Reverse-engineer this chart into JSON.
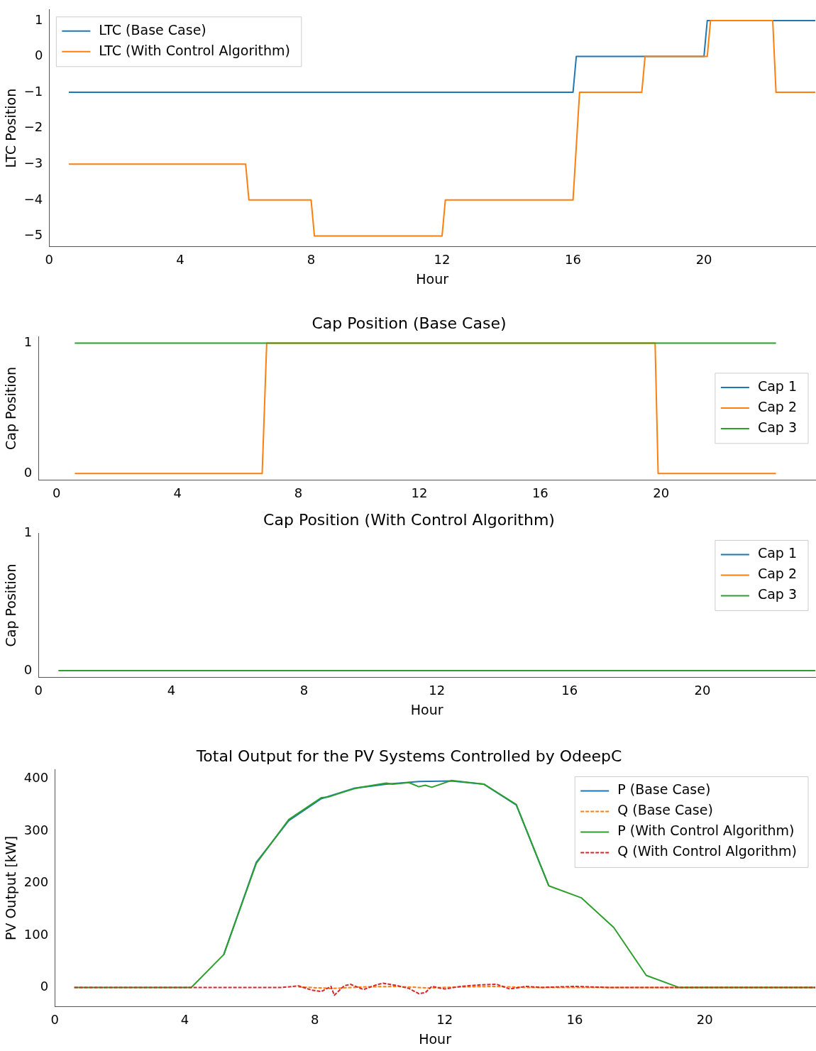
{
  "chart_data": [
    {
      "type": "line",
      "ylabel": "LTC Position",
      "xlabel": "Hour",
      "xlim": [
        0,
        23.4
      ],
      "ylim": [
        -5.3,
        1.3
      ],
      "xticks": [
        0,
        4,
        8,
        12,
        16,
        20
      ],
      "yticks": [
        -5,
        -4,
        -3,
        -2,
        -1,
        0,
        1
      ],
      "grid": false,
      "legend": "top left",
      "marker": "none",
      "series": [
        {
          "name": "LTC (Base Case)",
          "color": "#1f77b4",
          "x": [
            0.6,
            16.0,
            16.1,
            20.0,
            20.1,
            23.4
          ],
          "values": [
            -1,
            -1,
            0,
            0,
            1,
            1
          ]
        },
        {
          "name": "LTC (With Control Algorithm)",
          "color": "#ff7f0e",
          "x": [
            0.6,
            6.0,
            6.1,
            8.0,
            8.1,
            12.0,
            12.1,
            16.0,
            16.2,
            18.1,
            18.2,
            20.1,
            20.2,
            22.1,
            22.2,
            23.4
          ],
          "values": [
            -3,
            -3,
            -4,
            -4,
            -5,
            -5,
            -4,
            -4,
            -1,
            -1,
            0,
            0,
            1,
            1,
            -1,
            -1
          ]
        }
      ]
    },
    {
      "type": "line",
      "title": "Cap Position (Base Case)",
      "ylabel": "Cap Position",
      "xlim": [
        -0.6,
        25.1
      ],
      "ylim": [
        -0.05,
        1.05
      ],
      "xticks": [
        0,
        4,
        8,
        12,
        16,
        20
      ],
      "yticks": [
        0,
        1
      ],
      "grid": false,
      "legend": "right",
      "marker": "none",
      "series": [
        {
          "name": "Cap 1",
          "color": "#1f77b4"
        },
        {
          "name": "Cap 2",
          "color": "#ff7f0e",
          "x": [
            0.6,
            6.8,
            6.95,
            19.8,
            19.9,
            23.8
          ],
          "values": [
            0,
            0,
            1,
            1,
            0,
            0
          ]
        },
        {
          "name": "Cap 3",
          "color": "#2ca02c",
          "x": [
            0.6,
            23.8
          ],
          "values": [
            1,
            1
          ]
        }
      ]
    },
    {
      "type": "line",
      "title": "Cap Position (With Control Algorithm)",
      "ylabel": "Cap Position",
      "xlabel": "Hour",
      "xlim": [
        0,
        23.4
      ],
      "ylim": [
        -0.05,
        1
      ],
      "xticks": [
        0,
        4,
        8,
        12,
        16,
        20
      ],
      "yticks": [
        0,
        1
      ],
      "grid": false,
      "legend": "top right",
      "marker": "none",
      "series": [
        {
          "name": "Cap 1",
          "color": "#1f77b4"
        },
        {
          "name": "Cap 2",
          "color": "#ff7f0e"
        },
        {
          "name": "Cap 3",
          "color": "#2ca02c",
          "x": [
            0.6,
            23.4
          ],
          "values": [
            0,
            0
          ]
        }
      ]
    },
    {
      "type": "line",
      "title": "Total Output for the PV Systems Controlled by OdeepC",
      "ylabel": "PV Output [kW]",
      "xlabel": "Hour",
      "xlim": [
        0,
        23.4
      ],
      "ylim": [
        -37,
        418
      ],
      "xticks": [
        0,
        4,
        8,
        12,
        16,
        20
      ],
      "yticks": [
        0,
        100,
        200,
        300,
        400
      ],
      "grid": false,
      "legend": "top right",
      "marker": "none",
      "series": [
        {
          "name": "P (Base Case)",
          "color": "#1f77b4",
          "line_style": "solid",
          "x": [
            5.2,
            6.2,
            7.2,
            8.2,
            9.2,
            10.2,
            11.2,
            12.2,
            13.2,
            14.2,
            15.2
          ],
          "values": [
            63,
            240,
            320,
            362,
            382,
            390,
            395,
            396,
            390,
            350,
            195
          ]
        },
        {
          "name": "Q (Base Case)",
          "color": "#ff7f0e",
          "line_style": "dashed",
          "x": [
            7.5,
            8.5,
            9.5,
            10.5,
            11.5,
            12.5,
            13.5,
            14.5,
            23.4
          ],
          "values": [
            1,
            -2,
            1,
            2,
            -1,
            1,
            2,
            0,
            0
          ]
        },
        {
          "name": "P (With Control Algorithm)",
          "color": "#2ca02c",
          "line_style": "solid",
          "x": [
            0.6,
            4.2,
            5.2,
            6.2,
            7.2,
            8.2,
            8.4,
            8.7,
            9.2,
            9.5,
            10.2,
            10.4,
            10.9,
            11.2,
            11.4,
            11.6,
            12.2,
            13.2,
            14.2,
            15.2,
            16.2,
            17.2,
            18.2,
            19.2,
            23.4
          ],
          "values": [
            0,
            0,
            63,
            238,
            322,
            364,
            365,
            371,
            381,
            385,
            392,
            390,
            393,
            385,
            388,
            384,
            397,
            390,
            351,
            195,
            172,
            115,
            23,
            0,
            0
          ]
        },
        {
          "name": "Q (With Control Algorithm)",
          "color": "#d62728",
          "line_style": "dashed",
          "x": [
            0.6,
            7.0,
            7.5,
            7.9,
            8.2,
            8.5,
            8.6,
            8.9,
            9.1,
            9.5,
            9.9,
            10.1,
            10.5,
            10.9,
            11.2,
            11.4,
            11.6,
            12.0,
            12.5,
            13.1,
            13.6,
            14.0,
            14.5,
            15.0,
            16.0,
            17.0,
            23.4
          ],
          "values": [
            0,
            0,
            3,
            -5,
            -8,
            2,
            -15,
            3,
            6,
            -4,
            5,
            8,
            4,
            -2,
            -12,
            -10,
            2,
            -3,
            2,
            5,
            6,
            -3,
            2,
            0,
            2,
            0,
            0
          ]
        }
      ]
    }
  ]
}
